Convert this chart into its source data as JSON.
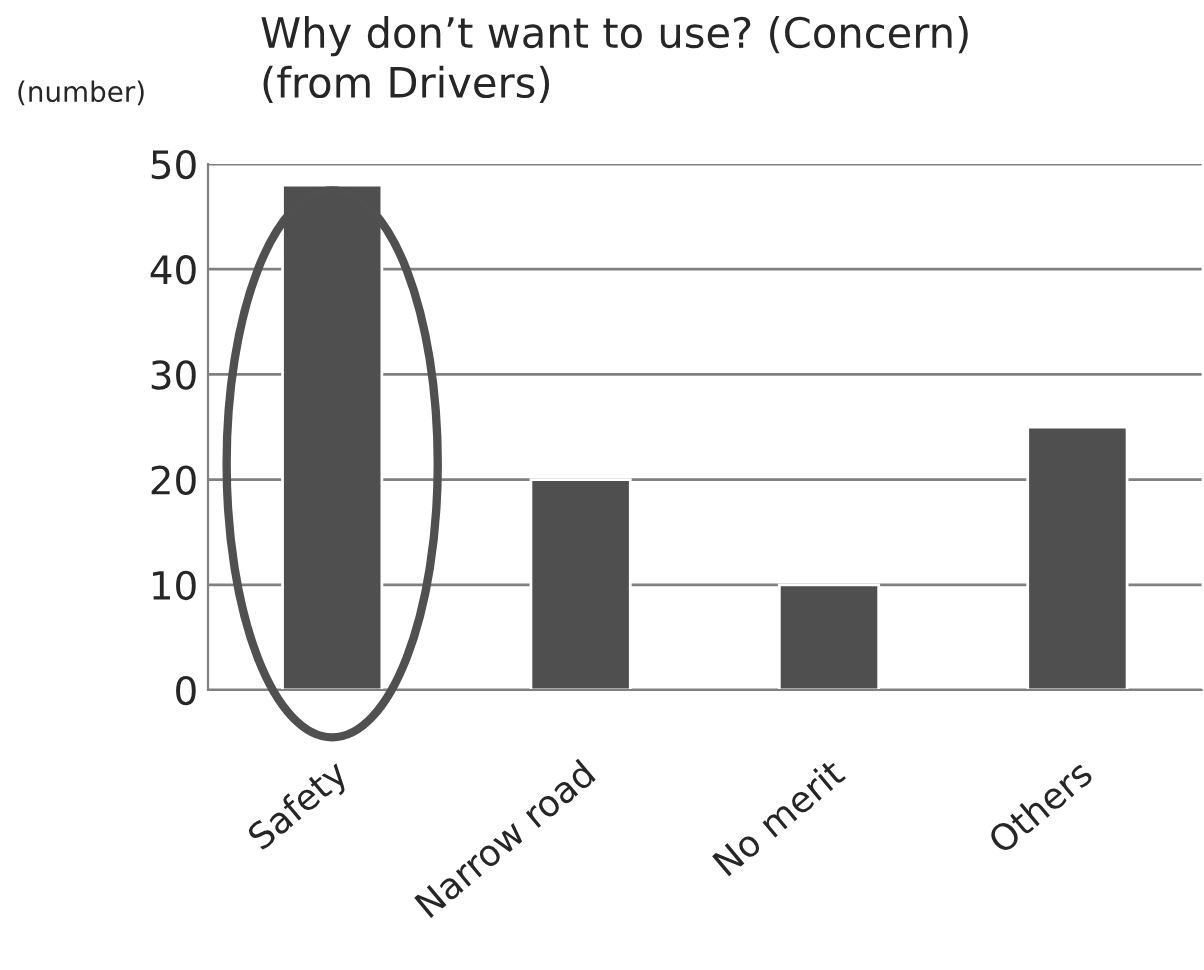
{
  "chart_data": {
    "type": "bar",
    "title": "Why don’t want to use? (Concern)\n(from Drivers)",
    "ylabel": "(number)",
    "categories": [
      "Safety",
      "Narrow road",
      "No merit",
      "Others"
    ],
    "values": [
      48,
      20,
      10,
      25
    ],
    "color": "#4f4f4f",
    "ylim": [
      0,
      50
    ],
    "yticks": [
      0,
      10,
      20,
      30,
      40,
      50
    ],
    "grid": "y"
  }
}
